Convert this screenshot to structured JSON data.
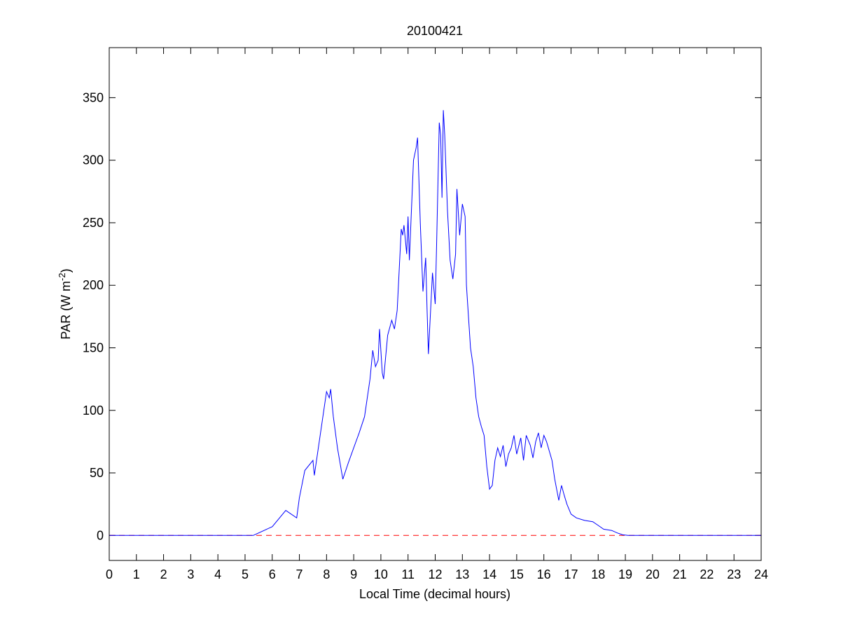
{
  "chart_data": {
    "type": "line",
    "title": "20100421",
    "xlabel": "Local Time (decimal hours)",
    "ylabel": {
      "text": "PAR (W m",
      "superscript": "-2",
      "suffix": ")"
    },
    "xlim": [
      0,
      24
    ],
    "xticks": [
      0,
      1,
      2,
      3,
      4,
      5,
      6,
      7,
      8,
      9,
      10,
      11,
      12,
      13,
      14,
      15,
      16,
      17,
      18,
      19,
      20,
      21,
      22,
      23,
      24
    ],
    "ylim": [
      -20,
      390
    ],
    "yticks": [
      0,
      50,
      100,
      150,
      200,
      250,
      300,
      350
    ],
    "grid": false,
    "reference_line": {
      "value": 0,
      "color": "#ff0000",
      "style": "dashed"
    },
    "series": [
      {
        "name": "PAR",
        "color": "#0000ff",
        "x": [
          0,
          5.3,
          6.0,
          6.5,
          6.9,
          7.0,
          7.2,
          7.5,
          7.55,
          8.0,
          8.1,
          8.15,
          8.25,
          8.4,
          8.6,
          8.8,
          9.0,
          9.2,
          9.4,
          9.6,
          9.7,
          9.8,
          9.9,
          9.95,
          10.05,
          10.1,
          10.25,
          10.4,
          10.5,
          10.6,
          10.75,
          10.8,
          10.85,
          10.95,
          11.0,
          11.05,
          11.2,
          11.3,
          11.35,
          11.45,
          11.55,
          11.65,
          11.7,
          11.75,
          11.9,
          12.0,
          12.05,
          12.15,
          12.2,
          12.25,
          12.3,
          12.35,
          12.45,
          12.55,
          12.65,
          12.75,
          12.8,
          12.9,
          13.0,
          13.1,
          13.15,
          13.3,
          13.4,
          13.5,
          13.6,
          13.7,
          13.8,
          13.9,
          14.0,
          14.1,
          14.2,
          14.3,
          14.4,
          14.5,
          14.6,
          14.7,
          14.8,
          14.9,
          15.0,
          15.15,
          15.25,
          15.35,
          15.5,
          15.6,
          15.7,
          15.8,
          15.9,
          16.0,
          16.1,
          16.3,
          16.4,
          16.55,
          16.65,
          16.75,
          16.85,
          17.0,
          17.2,
          17.5,
          17.8,
          18.0,
          18.2,
          18.5,
          18.7,
          18.9,
          19.1,
          24
        ],
        "values": [
          0,
          0,
          7,
          20,
          14,
          30,
          52,
          60,
          48,
          115,
          110,
          117,
          95,
          70,
          45,
          58,
          70,
          82,
          95,
          125,
          148,
          135,
          140,
          165,
          130,
          125,
          160,
          172,
          165,
          180,
          245,
          240,
          248,
          225,
          255,
          220,
          300,
          310,
          318,
          250,
          195,
          222,
          180,
          145,
          210,
          185,
          230,
          330,
          320,
          270,
          340,
          320,
          260,
          220,
          205,
          225,
          277,
          240,
          265,
          255,
          200,
          150,
          135,
          110,
          95,
          87,
          80,
          55,
          37,
          40,
          60,
          70,
          63,
          72,
          55,
          65,
          70,
          80,
          65,
          78,
          60,
          80,
          72,
          62,
          75,
          82,
          70,
          80,
          75,
          60,
          45,
          28,
          40,
          32,
          25,
          17,
          14,
          12,
          11,
          8,
          5,
          4,
          2,
          0.5,
          0,
          0
        ]
      }
    ]
  }
}
